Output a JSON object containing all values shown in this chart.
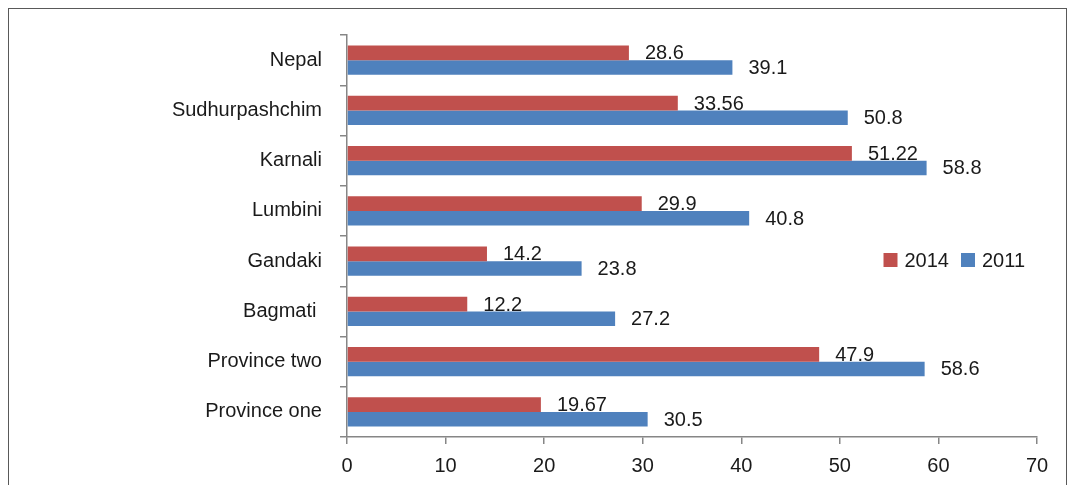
{
  "chart_data": {
    "type": "bar",
    "orientation": "horizontal",
    "categories": [
      "Nepal",
      "Sudhurpashchim",
      "Karnali",
      "Lumbini",
      "Gandaki",
      "Bagmati ",
      "Province two",
      "Province one"
    ],
    "series": [
      {
        "name": "2014",
        "color": "#c0504d",
        "values": [
          28.6,
          33.56,
          51.22,
          29.9,
          14.2,
          12.2,
          47.9,
          19.67
        ]
      },
      {
        "name": "2011",
        "color": "#4f81bd",
        "values": [
          39.1,
          50.8,
          58.8,
          40.8,
          23.8,
          27.2,
          58.6,
          30.5
        ]
      }
    ],
    "xlim": [
      0,
      70
    ],
    "xticks": [
      0,
      10,
      20,
      30,
      40,
      50,
      60,
      70
    ],
    "grid": false,
    "legend": "right",
    "data_labels": true
  }
}
